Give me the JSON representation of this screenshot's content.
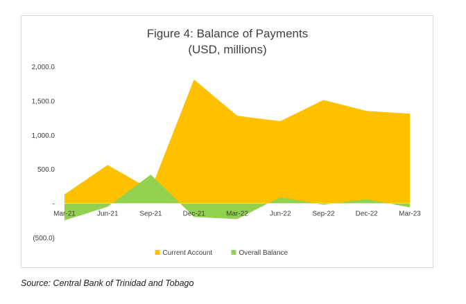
{
  "chart_data": {
    "type": "area",
    "title": "Figure 4: Balance of Payments",
    "subtitle": "(USD, millions)",
    "categories": [
      "Mar-21",
      "Jun-21",
      "Sep-21",
      "Dec-21",
      "Mar-22",
      "Jun-22",
      "Sep-22",
      "Dec-22",
      "Mar-23"
    ],
    "series": [
      {
        "name": "Current Account",
        "color": "#FFC000",
        "values": [
          130,
          560,
          200,
          1810,
          1280,
          1200,
          1510,
          1350,
          1310
        ]
      },
      {
        "name": "Overall Balance",
        "color": "#92D050",
        "values": [
          -250,
          -50,
          420,
          -200,
          -230,
          90,
          -20,
          60,
          -60
        ]
      }
    ],
    "yticks": [
      {
        "value": 2000,
        "label": "2,000.0"
      },
      {
        "value": 1500,
        "label": "1,500.0"
      },
      {
        "value": 1000,
        "label": "1,000.0"
      },
      {
        "value": 500,
        "label": "500.0"
      },
      {
        "value": 0,
        "label": "-"
      },
      {
        "value": -500,
        "label": "(500.0)"
      }
    ],
    "ylim": [
      -500,
      2000
    ],
    "grid": false,
    "legend": "bottom"
  },
  "source": "Source: Central Bank of Trinidad and Tobago"
}
